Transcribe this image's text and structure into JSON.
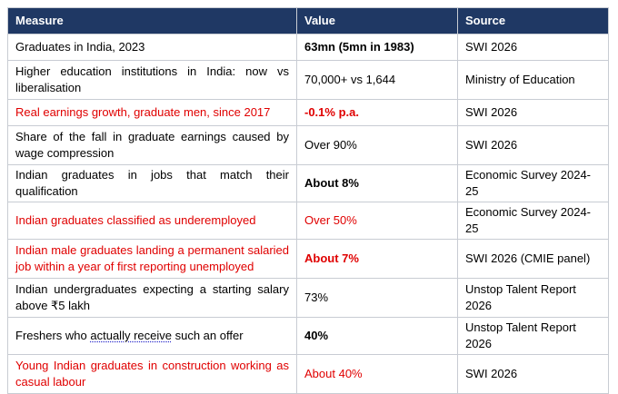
{
  "table": {
    "headers": [
      "Measure",
      "Value",
      "Source"
    ],
    "rows": [
      {
        "measure": "Graduates in India, 2023",
        "value": "63mn (5mn in 1983)",
        "source": "SWI 2026"
      },
      {
        "measure": "Higher education institutions in India: now vs liberalisation",
        "value": "70,000+ vs 1,644",
        "source": "Ministry of Education"
      },
      {
        "measure": "Real earnings growth, graduate men, since 2017",
        "value": "-0.1% p.a.",
        "source": "SWI 2026"
      },
      {
        "measure": "Share of the fall in graduate earnings caused by wage compression",
        "value": "Over 90%",
        "source": "SWI 2026"
      },
      {
        "measure": "Indian graduates in jobs that match their qualification",
        "value": "About 8%",
        "source": "Economic Survey 2024-25"
      },
      {
        "measure": "Indian graduates classified as underemployed",
        "value": "Over 50%",
        "source": "Economic Survey 2024-25"
      },
      {
        "measure": "Indian male graduates landing a permanent salaried job within a year of first reporting unemployed",
        "value": "About 7%",
        "source": "SWI 2026 (CMIE panel)"
      },
      {
        "measure": "Indian undergraduates expecting a starting salary above ₹5 lakh",
        "value": "73%",
        "source": "Unstop Talent Report 2026"
      },
      {
        "measure_pre": "Freshers who ",
        "measure_underlined": "actually receive",
        "measure_post": " such an offer",
        "value": "40%",
        "source": "Unstop Talent Report 2026"
      },
      {
        "measure": "Young Indian graduates in construction working as casual labour",
        "value": "About 40%",
        "source": "SWI 2026"
      }
    ]
  },
  "colors": {
    "header_bg": "#1f3864",
    "header_text": "#ffffff",
    "highlight_text": "#e00000",
    "border": "#c8ccd3"
  }
}
